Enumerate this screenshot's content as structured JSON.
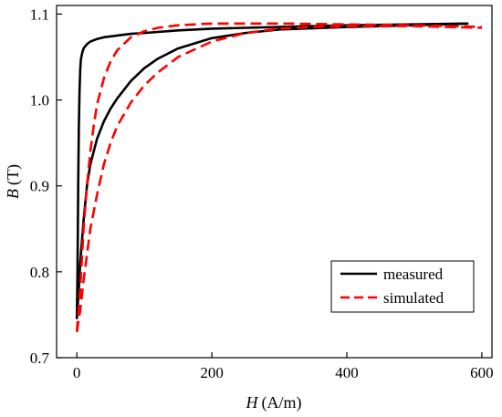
{
  "chart_data": {
    "type": "line",
    "xlabel_var": "H",
    "xlabel_unit": "(A/m)",
    "ylabel_var": "B",
    "ylabel_unit": "(T)",
    "xlim": [
      -30,
      615
    ],
    "ylim": [
      0.7,
      1.11
    ],
    "xticks": [
      0,
      200,
      400,
      600
    ],
    "xtick_labels": [
      "0",
      "200",
      "400",
      "600"
    ],
    "yticks": [
      0.7,
      0.8,
      0.9,
      1.0,
      1.1
    ],
    "ytick_labels": [
      "0.7",
      "0.8",
      "0.9",
      "1.0",
      "1.1"
    ],
    "legend_position": "lower-right",
    "series": [
      {
        "name": "measured",
        "color": "#000000",
        "style": "solid",
        "branches": [
          {
            "x": [
              0,
              1,
              2,
              3,
              4,
              5,
              6,
              8,
              10,
              15,
              20,
              30,
              40,
              60,
              80,
              100,
              150,
              200,
              300,
              400,
              500,
              580
            ],
            "y": [
              0.745,
              0.8,
              0.9,
              0.97,
              1.01,
              1.035,
              1.047,
              1.055,
              1.06,
              1.065,
              1.068,
              1.071,
              1.073,
              1.075,
              1.077,
              1.078,
              1.081,
              1.083,
              1.085,
              1.087,
              1.088,
              1.089
            ]
          },
          {
            "x": [
              0,
              3,
              5,
              10,
              15,
              20,
              30,
              40,
              50,
              60,
              80,
              100,
              120,
              150,
              200,
              250,
              300,
              400,
              500,
              580
            ],
            "y": [
              0.745,
              0.78,
              0.81,
              0.86,
              0.9,
              0.925,
              0.955,
              0.975,
              0.99,
              1.002,
              1.022,
              1.037,
              1.048,
              1.06,
              1.072,
              1.078,
              1.082,
              1.085,
              1.087,
              1.089
            ]
          }
        ]
      },
      {
        "name": "simulated",
        "color": "#ff0000",
        "style": "dashed",
        "branches": [
          {
            "x": [
              0,
              5,
              10,
              15,
              20,
              25,
              30,
              40,
              50,
              60,
              80,
              100,
              120,
              150,
              200,
              300,
              400,
              500,
              600
            ],
            "y": [
              0.73,
              0.78,
              0.85,
              0.9,
              0.94,
              0.97,
              0.995,
              1.025,
              1.045,
              1.058,
              1.073,
              1.08,
              1.084,
              1.087,
              1.089,
              1.089,
              1.088,
              1.087,
              1.085
            ]
          },
          {
            "x": [
              0,
              5,
              10,
              15,
              20,
              30,
              40,
              50,
              60,
              80,
              100,
              120,
              150,
              200,
              250,
              300,
              350,
              400,
              500,
              600
            ],
            "y": [
              0.73,
              0.755,
              0.79,
              0.82,
              0.85,
              0.89,
              0.925,
              0.95,
              0.97,
              0.997,
              1.017,
              1.032,
              1.05,
              1.068,
              1.078,
              1.083,
              1.085,
              1.086,
              1.086,
              1.084
            ]
          }
        ]
      }
    ]
  }
}
